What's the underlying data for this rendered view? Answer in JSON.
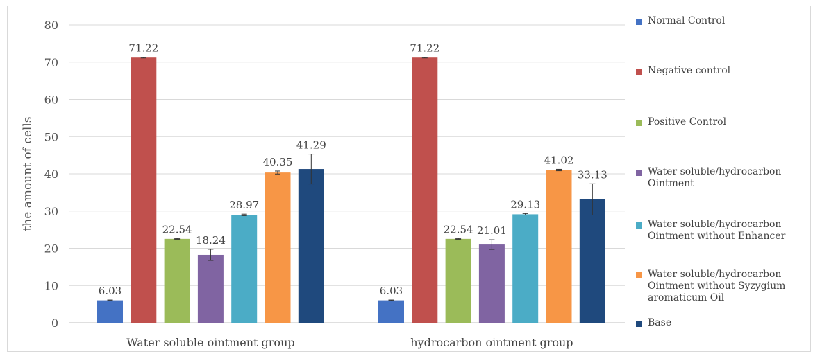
{
  "chart_data": {
    "type": "bar",
    "ylabel": "the amount of cells",
    "xlabel": "",
    "ylim": [
      0,
      80
    ],
    "yticks": [
      0,
      10,
      20,
      30,
      40,
      50,
      60,
      70,
      80
    ],
    "grid": true,
    "legend_position": "right",
    "categories": [
      "Water soluble ointment group",
      "hydrocarbon ointment group"
    ],
    "series": [
      {
        "name": "Normal Control",
        "color": "#4472C4",
        "values": [
          6.03,
          6.03
        ],
        "labels": [
          "6.03",
          "6.03"
        ],
        "error": [
          0.1,
          0.1
        ]
      },
      {
        "name": "Negative control",
        "color": "#C0504D",
        "values": [
          71.22,
          71.22
        ],
        "labels": [
          "71.22",
          "71.22"
        ],
        "error": [
          0.1,
          0.1
        ]
      },
      {
        "name": "Positive Control",
        "color": "#9BBB59",
        "values": [
          22.54,
          22.54
        ],
        "labels": [
          "22.54",
          "22.54"
        ],
        "error": [
          0.1,
          0.1
        ]
      },
      {
        "name": "Water soluble/hydrocarbon Ointment",
        "color": "#8064A2",
        "values": [
          18.24,
          21.01
        ],
        "labels": [
          "18.24",
          "21.01"
        ],
        "error": [
          1.5,
          1.3
        ]
      },
      {
        "name": "Water soluble/hydrocarbon Ointment without Enhancer",
        "color": "#4BACC6",
        "values": [
          28.97,
          29.13
        ],
        "labels": [
          "28.97",
          "29.13"
        ],
        "error": [
          0.2,
          0.2
        ]
      },
      {
        "name": "Water soluble/hydrocarbon Ointment without Syzygium aromaticum Oil",
        "color": "#F79646",
        "values": [
          40.35,
          41.02
        ],
        "labels": [
          "40.35",
          "41.02"
        ],
        "error": [
          0.4,
          0.2
        ]
      },
      {
        "name": "Base",
        "color": "#1F497D",
        "values": [
          41.29,
          33.13
        ],
        "labels": [
          "41.29",
          "33.13"
        ],
        "error": [
          4.0,
          4.2
        ]
      }
    ]
  },
  "legend_lines": [
    [
      "Normal Control"
    ],
    [
      "Negative control"
    ],
    [
      "Positive Control"
    ],
    [
      "Water soluble/hydrocarbon",
      "Ointment"
    ],
    [
      "Water soluble/hydrocarbon",
      "Ointment without Enhancer"
    ],
    [
      "Water soluble/hydrocarbon",
      "Ointment without Syzygium",
      "aromaticum Oil"
    ],
    [
      "Base"
    ]
  ]
}
